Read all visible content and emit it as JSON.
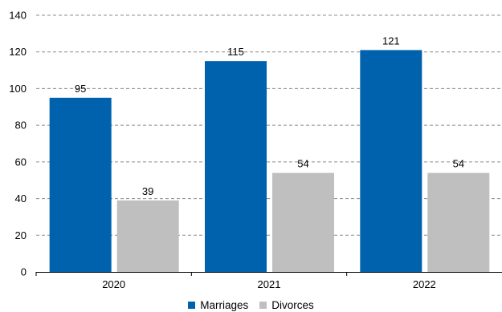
{
  "chart_data": {
    "type": "bar",
    "categories": [
      "2020",
      "2021",
      "2022"
    ],
    "series": [
      {
        "name": "Marriages",
        "color": "#0062AD",
        "values": [
          95,
          115,
          121
        ]
      },
      {
        "name": "Divorces",
        "color": "#BFBFBF",
        "values": [
          39,
          54,
          54
        ]
      }
    ],
    "ylim": [
      0,
      140
    ],
    "yticks": [
      0,
      20,
      40,
      60,
      80,
      100,
      120,
      140
    ],
    "grid": true,
    "legend": "bottom-center",
    "title": "",
    "xlabel": "",
    "ylabel": ""
  }
}
